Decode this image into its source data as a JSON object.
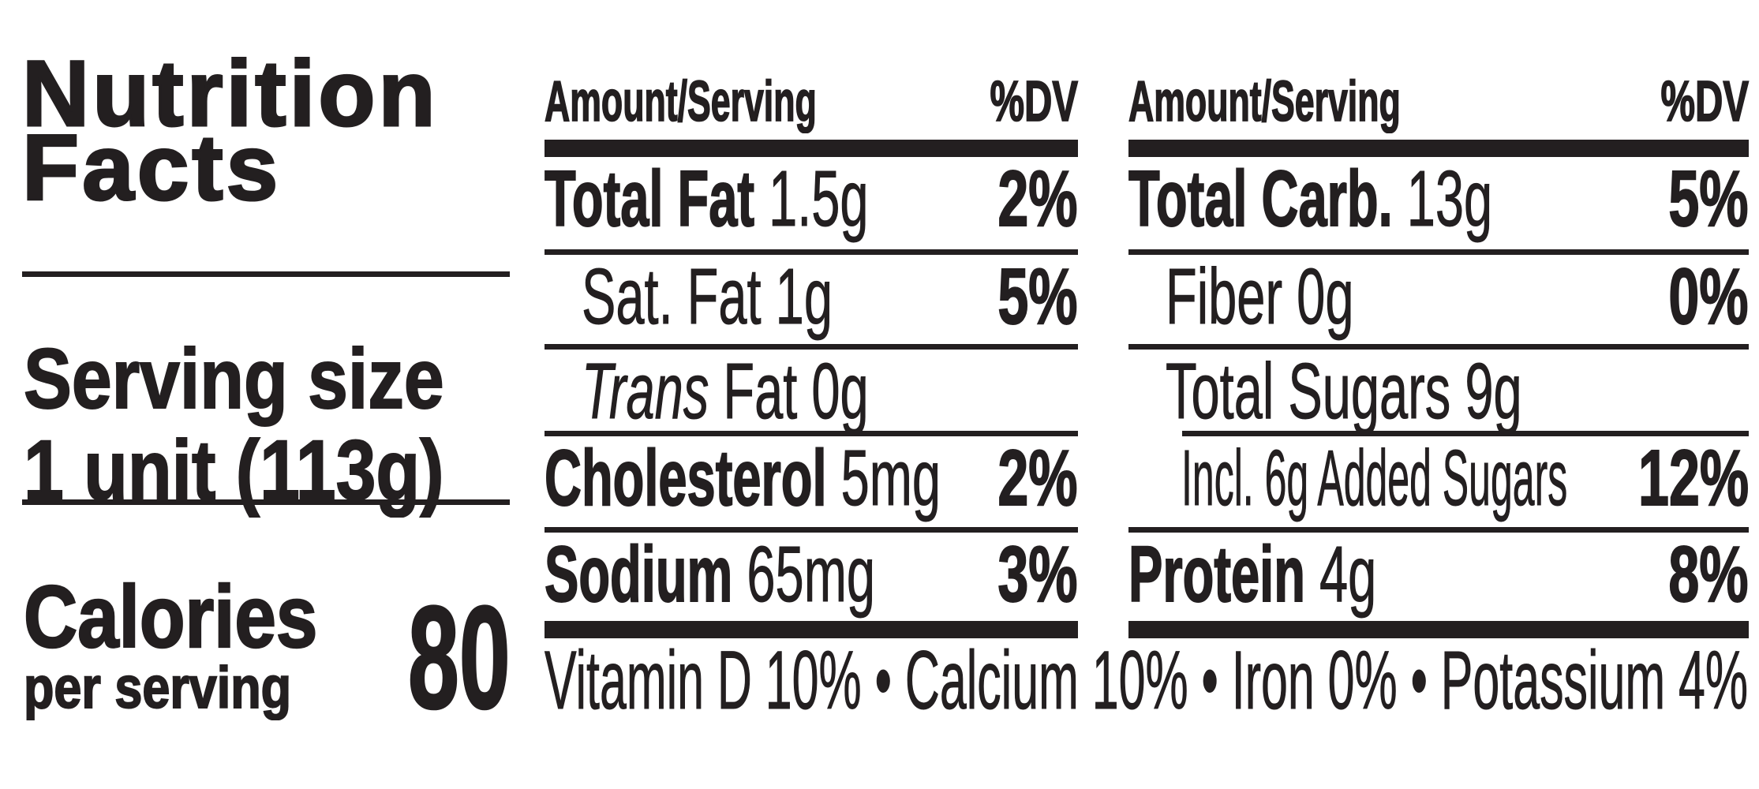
{
  "colors": {
    "ink": "#231f20",
    "background": "#ffffff"
  },
  "panel": {
    "title_line1": "Nutrition",
    "title_line2": "Facts",
    "serving_size_label": "Serving size",
    "serving_size_value": "1 unit (113g)",
    "calories_label": "Calories",
    "calories_sublabel": "per serving",
    "calories_value": "80",
    "footnote": "Vitamin D 10% • Calcium 10% • Iron 0% • Potassium 4%"
  },
  "columns": [
    {
      "header": {
        "amount_label": "Amount/Serving",
        "dv_label": "%DV"
      },
      "rows": [
        {
          "name": "Total Fat",
          "amount": "1.5g",
          "dv": "2%",
          "style": "bold",
          "indent": 0,
          "rule": "none"
        },
        {
          "name": "Sat. Fat",
          "amount": "1g",
          "dv": "5%",
          "style": "regular",
          "indent": 1,
          "rule": "full"
        },
        {
          "name": "Trans",
          "amount": "Fat 0g",
          "dv": "",
          "style": "italic-name",
          "indent": 1,
          "rule": "full"
        },
        {
          "name": "Cholesterol",
          "amount": "5mg",
          "dv": "2%",
          "style": "bold",
          "indent": 0,
          "rule": "full"
        },
        {
          "name": "Sodium",
          "amount": "65mg",
          "dv": "3%",
          "style": "bold",
          "indent": 0,
          "rule": "full"
        }
      ]
    },
    {
      "header": {
        "amount_label": "Amount/Serving",
        "dv_label": "%DV"
      },
      "rows": [
        {
          "name": "Total Carb.",
          "amount": "13g",
          "dv": "5%",
          "style": "bold",
          "indent": 0,
          "rule": "none"
        },
        {
          "name": "Fiber",
          "amount": "0g",
          "dv": "0%",
          "style": "regular",
          "indent": 1,
          "rule": "full"
        },
        {
          "name": "Total Sugars",
          "amount": "9g",
          "dv": "",
          "style": "regular",
          "indent": 1,
          "rule": "full"
        },
        {
          "name": "Incl. 6g Added Sugars",
          "amount": "",
          "dv": "12%",
          "style": "regular",
          "indent": 2,
          "rule": "indent",
          "condensed": true
        },
        {
          "name": "Protein",
          "amount": "4g",
          "dv": "8%",
          "style": "bold",
          "indent": 0,
          "rule": "full"
        }
      ]
    }
  ]
}
